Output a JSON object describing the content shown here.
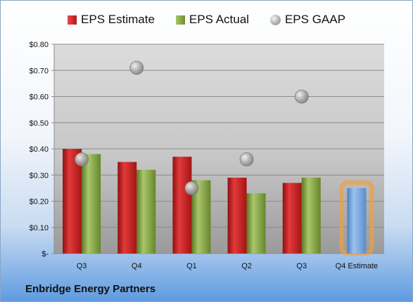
{
  "legend": {
    "estimate": "EPS Estimate",
    "actual": "EPS Actual",
    "gaap": "EPS GAAP"
  },
  "company": "Enbridge Energy Partners",
  "colors": {
    "estimate": "#c41f1f",
    "actual": "#7e9c3a",
    "gaap": "#a6a6a6",
    "q4_estimate": "#6f9fd8",
    "q4_highlight": "#f0a040"
  },
  "chart_data": {
    "type": "bar",
    "categories": [
      "Q3",
      "Q4",
      "Q1",
      "Q2",
      "Q3",
      "Q4 Estimate"
    ],
    "series": [
      {
        "name": "EPS Estimate",
        "values": [
          0.4,
          0.35,
          0.37,
          0.29,
          0.27,
          null
        ]
      },
      {
        "name": "EPS Actual",
        "values": [
          0.38,
          0.32,
          0.28,
          0.23,
          0.29,
          null
        ]
      },
      {
        "name": "EPS GAAP",
        "values": [
          0.36,
          0.71,
          0.25,
          0.36,
          0.6,
          null
        ]
      },
      {
        "name": "Q4 Estimate",
        "values": [
          null,
          null,
          null,
          null,
          null,
          0.25
        ]
      }
    ],
    "yticks": [
      "$-",
      "$0.10",
      "$0.20",
      "$0.30",
      "$0.40",
      "$0.50",
      "$0.60",
      "$0.70",
      "$0.80"
    ],
    "ylim": [
      0,
      0.8
    ],
    "grid": true,
    "legend_position": "top"
  }
}
